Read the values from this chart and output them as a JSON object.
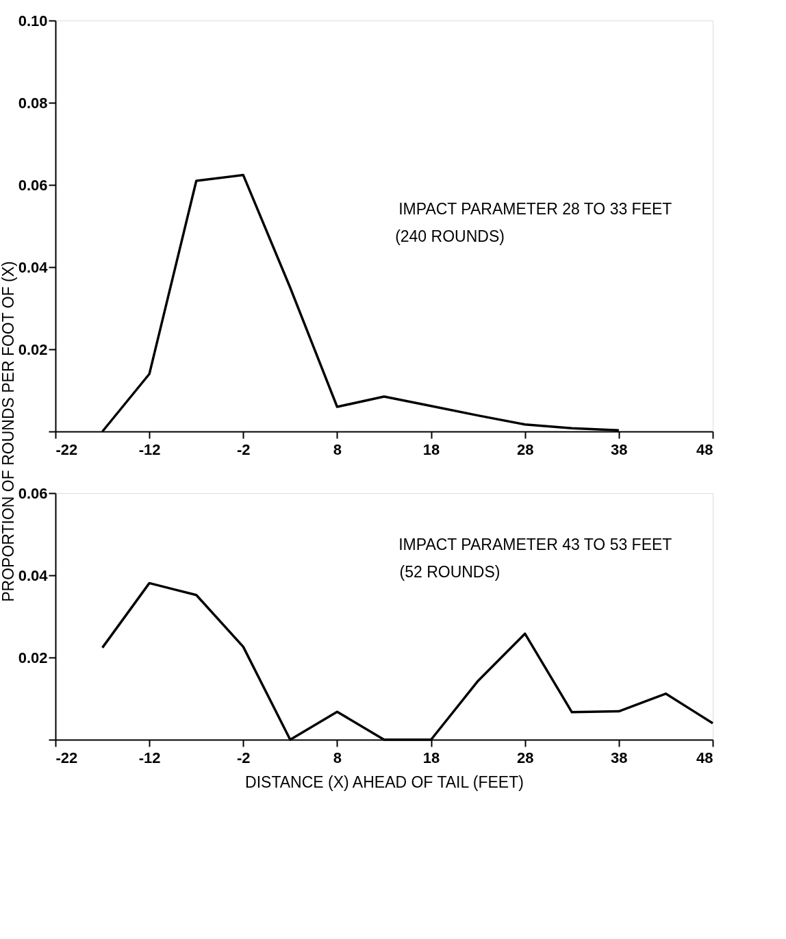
{
  "chart_data": [
    {
      "type": "line",
      "ylabel": "PROPORTION OF ROUNDS PER FOOT OF (X)",
      "annotations": [
        "IMPACT PARAMETER 28 TO 33 FEET",
        "(240 ROUNDS)"
      ],
      "x": [
        -17,
        -12,
        -7,
        -2,
        3,
        8,
        13,
        18,
        23,
        28,
        33,
        38
      ],
      "series": [
        {
          "color": "#000000",
          "values": [
            0,
            0.014,
            0.061,
            0.0624,
            0.035,
            0.006,
            0.0085,
            0.0062,
            0.0039,
            0.0017,
            0.0008,
            0.0003
          ]
        }
      ],
      "xlim": [
        -22,
        48
      ],
      "xticks": [
        -22,
        -12,
        -2,
        8,
        18,
        28,
        38,
        48
      ],
      "ylim": [
        0,
        0.1
      ],
      "yticks": [
        {
          "value": 0,
          "label": null
        },
        {
          "value": 0.02,
          "label": "0.02"
        },
        {
          "value": 0.04,
          "label": "0.04"
        },
        {
          "value": 0.06,
          "label": "0.06"
        },
        {
          "value": 0.08,
          "label": "0.08"
        },
        {
          "value": 0.1,
          "label": "0.10"
        }
      ],
      "grid": false,
      "marker": "none",
      "line_style": "solid"
    },
    {
      "type": "line",
      "xlabel": "DISTANCE (X) AHEAD OF TAIL (FEET)",
      "annotations": [
        "IMPACT PARAMETER 43 TO 53 FEET",
        "(52 ROUNDS)"
      ],
      "x": [
        -17,
        -12,
        -7,
        -2,
        3,
        8,
        13,
        18,
        23,
        28,
        33,
        38,
        43,
        48
      ],
      "series": [
        {
          "color": "#000000",
          "values": [
            0.0224,
            0.0381,
            0.0352,
            0.0226,
            0,
            0.0068,
            0,
            0,
            0.0143,
            0.0258,
            0.0067,
            0.0069,
            0.0112,
            0.004
          ]
        }
      ],
      "xlim": [
        -22,
        48
      ],
      "xticks": [
        -22,
        -12,
        -2,
        8,
        18,
        28,
        38,
        48
      ],
      "ylim": [
        0,
        0.06
      ],
      "yticks": [
        {
          "value": 0,
          "label": null
        },
        {
          "value": 0.02,
          "label": "0.02"
        },
        {
          "value": 0.04,
          "label": "0.04"
        },
        {
          "value": 0.06,
          "label": "0.06"
        }
      ],
      "grid": false,
      "marker": "none",
      "line_style": "solid"
    }
  ]
}
